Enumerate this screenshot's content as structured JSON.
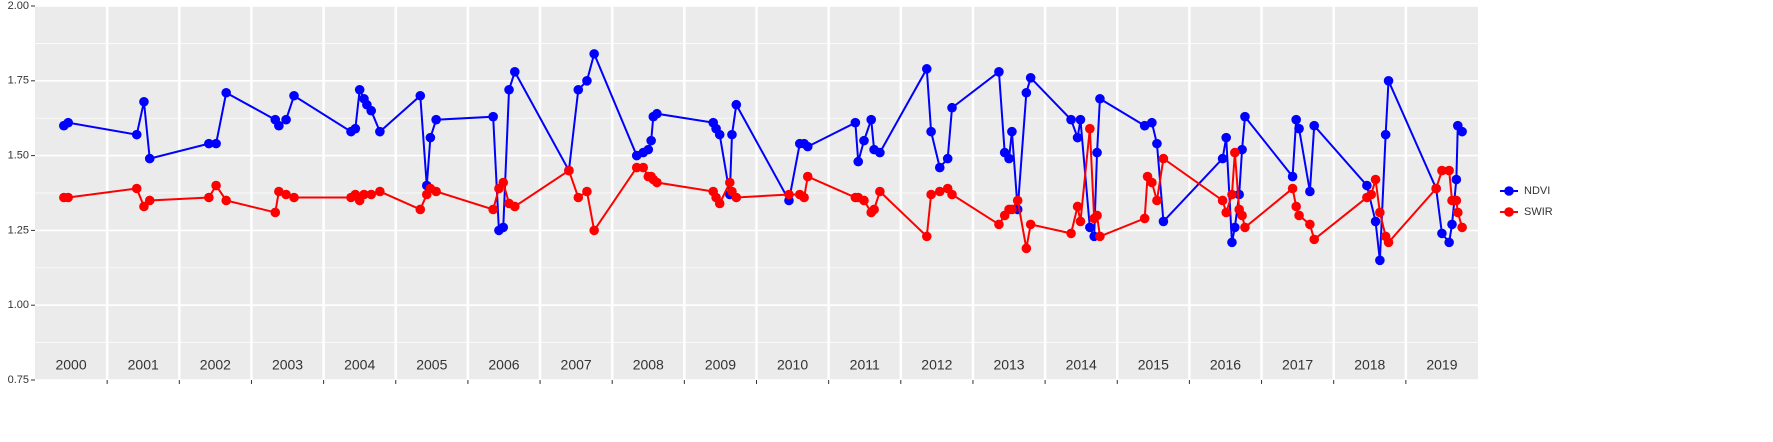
{
  "chart_data": {
    "type": "line",
    "xlim": [
      2000,
      2020
    ],
    "ylim": [
      0.75,
      2.0
    ],
    "yticks": [
      0.75,
      {
        "value": 1.0,
        "label": "1.00"
      },
      1.25,
      {
        "value": 1.5,
        "label": "1.50"
      },
      1.75,
      {
        "value": 2.0,
        "label": "2.00"
      }
    ],
    "year_labels": [
      "2000",
      "2001",
      "2002",
      "2003",
      "2004",
      "2005",
      "2006",
      "2007",
      "2008",
      "2009",
      "2010",
      "2011",
      "2012",
      "2013",
      "2014",
      "2015",
      "2016",
      "2017",
      "2018",
      "2019"
    ],
    "grid": true,
    "legend_position": "right",
    "series": [
      {
        "name": "NDVI",
        "color": "#0000ff",
        "x": [
          2000.4,
          2000.46,
          2001.41,
          2001.51,
          2001.59,
          2002.41,
          2002.51,
          2002.65,
          2003.33,
          2003.38,
          2003.48,
          2003.59,
          2004.38,
          2004.44,
          2004.5,
          2004.56,
          2004.6,
          2004.66,
          2004.78,
          2005.34,
          2005.43,
          2005.48,
          2005.56,
          2006.35,
          2006.43,
          2006.49,
          2006.57,
          2006.65,
          2007.4,
          2007.53,
          2007.65,
          2007.75,
          2008.34,
          2008.43,
          2008.5,
          2008.54,
          2008.57,
          2008.62,
          2009.4,
          2009.44,
          2009.49,
          2009.63,
          2009.66,
          2009.72,
          2010.45,
          2010.6,
          2010.66,
          2010.71,
          2011.37,
          2011.41,
          2011.49,
          2011.59,
          2011.63,
          2011.71,
          2012.36,
          2012.42,
          2012.54,
          2012.65,
          2012.71,
          2013.36,
          2013.44,
          2013.5,
          2013.54,
          2013.62,
          2013.74,
          2013.8,
          2014.36,
          2014.45,
          2014.49,
          2014.62,
          2014.68,
          2014.72,
          2014.76,
          2015.38,
          2015.48,
          2015.55,
          2015.64,
          2016.46,
          2016.51,
          2016.59,
          2016.63,
          2016.69,
          2016.73,
          2016.77,
          2017.43,
          2017.48,
          2017.52,
          2017.67,
          2017.73,
          2018.46,
          2018.58,
          2018.64,
          2018.72,
          2018.76,
          2019.42,
          2019.5,
          2019.6,
          2019.64,
          2019.7,
          2019.72,
          2019.78
        ],
        "values": [
          1.6,
          1.61,
          1.57,
          1.68,
          1.49,
          1.54,
          1.54,
          1.71,
          1.62,
          1.6,
          1.62,
          1.7,
          1.58,
          1.59,
          1.72,
          1.69,
          1.67,
          1.65,
          1.58,
          1.7,
          1.4,
          1.56,
          1.62,
          1.63,
          1.25,
          1.26,
          1.72,
          1.78,
          1.45,
          1.72,
          1.75,
          1.84,
          1.5,
          1.51,
          1.52,
          1.55,
          1.63,
          1.64,
          1.61,
          1.59,
          1.57,
          1.37,
          1.57,
          1.67,
          1.35,
          1.54,
          1.54,
          1.53,
          1.61,
          1.48,
          1.55,
          1.62,
          1.52,
          1.51,
          1.79,
          1.58,
          1.46,
          1.49,
          1.66,
          1.78,
          1.51,
          1.49,
          1.58,
          1.32,
          1.71,
          1.76,
          1.62,
          1.56,
          1.62,
          1.26,
          1.23,
          1.51,
          1.69,
          1.6,
          1.61,
          1.54,
          1.28,
          1.49,
          1.56,
          1.21,
          1.26,
          1.37,
          1.52,
          1.63,
          1.43,
          1.62,
          1.59,
          1.38,
          1.6,
          1.4,
          1.28,
          1.15,
          1.57,
          1.75,
          1.39,
          1.24,
          1.21,
          1.27,
          1.42,
          1.6,
          1.58
        ]
      },
      {
        "name": "SWIR",
        "color": "#ff0000",
        "x": [
          2000.4,
          2000.46,
          2001.41,
          2001.51,
          2001.59,
          2002.41,
          2002.51,
          2002.65,
          2003.33,
          2003.38,
          2003.48,
          2003.59,
          2004.38,
          2004.44,
          2004.5,
          2004.56,
          2004.66,
          2004.78,
          2005.34,
          2005.43,
          2005.48,
          2005.56,
          2006.35,
          2006.43,
          2006.49,
          2006.57,
          2006.65,
          2007.4,
          2007.53,
          2007.65,
          2007.75,
          2008.34,
          2008.43,
          2008.5,
          2008.54,
          2008.57,
          2008.62,
          2009.4,
          2009.44,
          2009.49,
          2009.63,
          2009.66,
          2009.72,
          2010.45,
          2010.6,
          2010.66,
          2010.71,
          2011.37,
          2011.41,
          2011.49,
          2011.59,
          2011.63,
          2011.71,
          2012.36,
          2012.42,
          2012.54,
          2012.65,
          2012.71,
          2013.36,
          2013.44,
          2013.5,
          2013.54,
          2013.62,
          2013.74,
          2013.8,
          2014.36,
          2014.45,
          2014.49,
          2014.62,
          2014.68,
          2014.72,
          2014.76,
          2015.38,
          2015.42,
          2015.48,
          2015.55,
          2015.64,
          2016.46,
          2016.51,
          2016.59,
          2016.63,
          2016.69,
          2016.73,
          2016.77,
          2017.43,
          2017.48,
          2017.52,
          2017.67,
          2017.73,
          2018.46,
          2018.52,
          2018.58,
          2018.64,
          2018.72,
          2018.76,
          2019.42,
          2019.5,
          2019.6,
          2019.64,
          2019.7,
          2019.72,
          2019.78
        ],
        "values": [
          1.36,
          1.36,
          1.39,
          1.33,
          1.35,
          1.36,
          1.4,
          1.35,
          1.31,
          1.38,
          1.37,
          1.36,
          1.36,
          1.37,
          1.35,
          1.37,
          1.37,
          1.38,
          1.32,
          1.37,
          1.39,
          1.38,
          1.32,
          1.39,
          1.41,
          1.34,
          1.33,
          1.45,
          1.36,
          1.38,
          1.25,
          1.46,
          1.46,
          1.43,
          1.43,
          1.42,
          1.41,
          1.38,
          1.36,
          1.34,
          1.41,
          1.38,
          1.36,
          1.37,
          1.37,
          1.36,
          1.43,
          1.36,
          1.36,
          1.35,
          1.31,
          1.32,
          1.38,
          1.23,
          1.37,
          1.38,
          1.39,
          1.37,
          1.27,
          1.3,
          1.32,
          1.32,
          1.35,
          1.19,
          1.27,
          1.24,
          1.33,
          1.28,
          1.59,
          1.29,
          1.3,
          1.23,
          1.29,
          1.43,
          1.41,
          1.35,
          1.49,
          1.35,
          1.31,
          1.37,
          1.51,
          1.32,
          1.3,
          1.26,
          1.39,
          1.33,
          1.3,
          1.27,
          1.22,
          1.36,
          1.37,
          1.42,
          1.31,
          1.23,
          1.21,
          1.39,
          1.45,
          1.45,
          1.35,
          1.35,
          1.31,
          1.26
        ]
      }
    ]
  }
}
